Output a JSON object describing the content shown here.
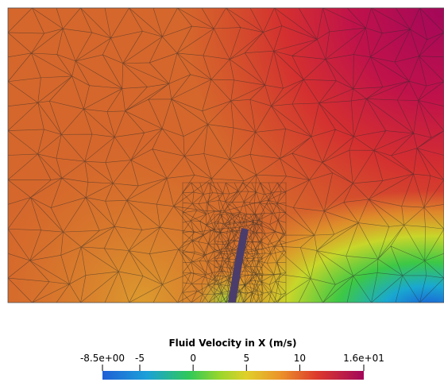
{
  "chart_data": {
    "type": "colorbar",
    "title": "Fluid Velocity in X (m/s)",
    "xlim": [
      -8.5,
      16
    ],
    "xticks": [
      {
        "value": -8.5,
        "label": "-8.5e+00"
      },
      -5,
      0,
      5,
      10,
      {
        "value": 16,
        "label": "1.6e+01"
      }
    ]
  }
}
